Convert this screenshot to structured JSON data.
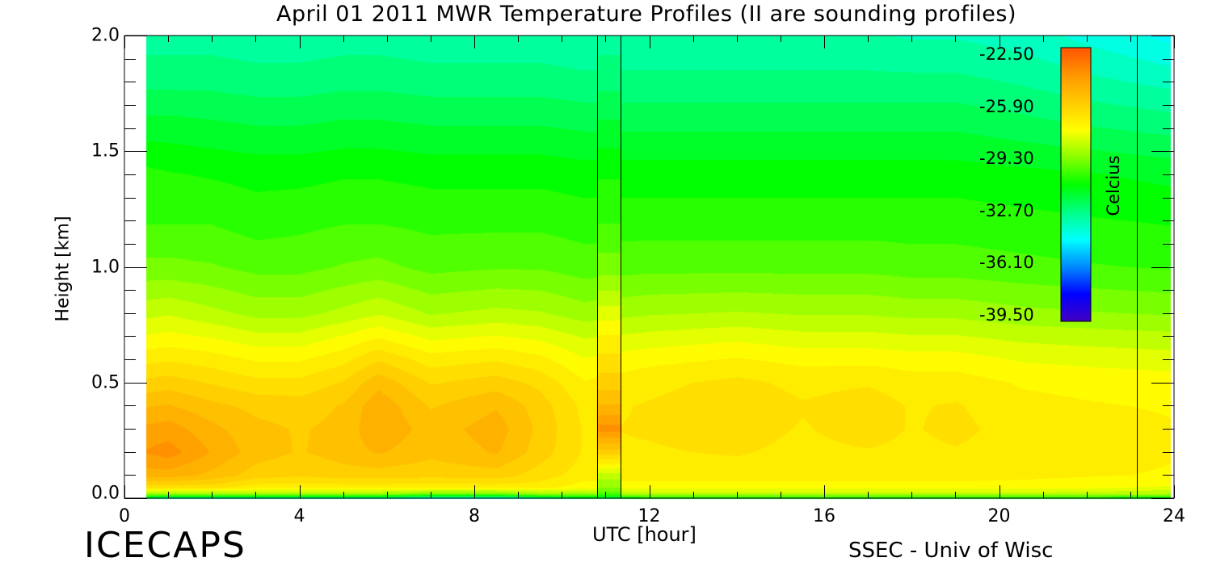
{
  "chart_data": {
    "type": "heatmap",
    "title": "April 01 2011 MWR Temperature Profiles (II are sounding profiles)",
    "xlabel": "UTC [hour]",
    "ylabel": "Height [km]",
    "xlim": [
      0,
      24
    ],
    "ylim": [
      0,
      2
    ],
    "x_ticks": [
      "0",
      "4",
      "8",
      "12",
      "16",
      "20",
      "24"
    ],
    "y_ticks": [
      "0.0",
      "0.5",
      "1.0",
      "1.5",
      "2.0"
    ],
    "data_x_range": [
      0.5,
      23.9
    ],
    "sounding_profiles": [
      {
        "times": [
          10.8,
          11.35
        ],
        "peak_temperature": -24.0,
        "peak_height": 0.3
      }
    ],
    "sounding_lines_x": [
      10.8,
      11.35,
      23.15
    ],
    "colorbar": {
      "label": "Celcius",
      "ticks": [
        "-22.50",
        "-25.90",
        "-29.30",
        "-32.70",
        "-36.10",
        "-39.50"
      ],
      "range": [
        -39.5,
        -22.5
      ],
      "colors": [
        "#4400c0",
        "#0000ff",
        "#0088ff",
        "#00ffff",
        "#00ff88",
        "#00ff00",
        "#88ff00",
        "#ffff00",
        "#ffcc00",
        "#ff9900",
        "#ff5500"
      ]
    },
    "profile_heights": [
      0.0,
      0.02,
      0.05,
      0.1,
      0.2,
      0.3,
      0.4,
      0.5,
      0.6,
      0.7,
      0.8,
      1.0,
      1.2,
      1.4,
      1.6,
      1.8,
      2.0
    ],
    "profile_times": [
      0.5,
      1.0,
      2.0,
      3.0,
      4.0,
      5.0,
      5.8,
      7.0,
      8.5,
      9.5,
      10.5,
      12.0,
      14.0,
      15.5,
      17.0,
      18.0,
      19.0,
      20.5,
      22.0,
      23.9
    ],
    "profiles": [
      [
        -32.5,
        -29.0,
        -26.5,
        -25.0,
        -24.2,
        -24.6,
        -25.3,
        -26.1,
        -26.9,
        -27.7,
        -28.4,
        -29.6,
        -30.3,
        -30.6,
        -31.5,
        -32.4,
        -33.0
      ],
      [
        -33.0,
        -29.0,
        -26.5,
        -25.0,
        -24.0,
        -24.5,
        -25.2,
        -26.0,
        -26.8,
        -27.6,
        -28.3,
        -29.6,
        -30.3,
        -30.7,
        -31.5,
        -32.4,
        -33.0
      ],
      [
        -33.0,
        -29.0,
        -26.5,
        -25.4,
        -24.8,
        -25.1,
        -25.6,
        -26.3,
        -27.0,
        -27.8,
        -28.6,
        -29.7,
        -30.3,
        -30.8,
        -31.6,
        -32.4,
        -33.0
      ],
      [
        -33.0,
        -29.0,
        -27.0,
        -26.0,
        -25.5,
        -25.6,
        -25.9,
        -26.6,
        -27.3,
        -28.1,
        -28.9,
        -29.9,
        -30.5,
        -30.9,
        -31.7,
        -32.5,
        -33.1
      ],
      [
        -33.0,
        -29.0,
        -27.0,
        -26.2,
        -25.8,
        -25.8,
        -26.0,
        -26.6,
        -27.3,
        -28.1,
        -28.9,
        -29.9,
        -30.4,
        -30.9,
        -31.7,
        -32.5,
        -33.1
      ],
      [
        -33.0,
        -29.0,
        -27.0,
        -26.0,
        -25.5,
        -25.6,
        -25.7,
        -26.2,
        -26.9,
        -27.7,
        -28.6,
        -29.7,
        -30.3,
        -30.8,
        -31.6,
        -32.4,
        -33.0
      ],
      [
        -33.0,
        -29.0,
        -27.0,
        -26.0,
        -25.2,
        -24.8,
        -24.9,
        -25.4,
        -26.3,
        -27.3,
        -28.3,
        -29.6,
        -30.3,
        -30.8,
        -31.6,
        -32.4,
        -33.0
      ],
      [
        -34.0,
        -29.5,
        -27.0,
        -26.1,
        -25.6,
        -25.5,
        -25.8,
        -26.3,
        -27.0,
        -27.9,
        -28.8,
        -29.9,
        -30.4,
        -30.9,
        -31.7,
        -32.5,
        -33.1
      ],
      [
        -34.0,
        -29.5,
        -27.0,
        -26.0,
        -25.2,
        -25.0,
        -25.3,
        -26.0,
        -26.8,
        -27.7,
        -28.6,
        -29.8,
        -30.4,
        -30.9,
        -31.7,
        -32.5,
        -33.1
      ],
      [
        -33.0,
        -29.0,
        -27.0,
        -26.5,
        -26.0,
        -25.9,
        -26.0,
        -26.4,
        -27.1,
        -27.9,
        -28.7,
        -29.8,
        -30.4,
        -30.9,
        -31.7,
        -32.5,
        -33.1
      ],
      [
        -32.0,
        -29.0,
        -27.5,
        -27.0,
        -26.8,
        -26.8,
        -26.9,
        -27.2,
        -27.7,
        -28.3,
        -29.0,
        -30.0,
        -30.5,
        -31.0,
        -31.8,
        -32.6,
        -33.2
      ],
      [
        -31.0,
        -28.5,
        -27.5,
        -27.0,
        -26.8,
        -26.7,
        -26.7,
        -26.9,
        -27.4,
        -28.1,
        -28.8,
        -29.9,
        -30.5,
        -31.0,
        -31.8,
        -32.6,
        -33.2
      ],
      [
        -31.0,
        -28.5,
        -27.5,
        -27.0,
        -26.7,
        -26.5,
        -26.4,
        -26.6,
        -27.2,
        -27.9,
        -28.7,
        -29.9,
        -30.5,
        -31.0,
        -31.8,
        -32.6,
        -33.2
      ],
      [
        -31.0,
        -28.5,
        -27.5,
        -27.0,
        -26.9,
        -26.8,
        -26.7,
        -26.9,
        -27.4,
        -28.1,
        -28.8,
        -29.9,
        -30.5,
        -31.0,
        -31.8,
        -32.6,
        -33.2
      ],
      [
        -31.0,
        -28.5,
        -27.5,
        -27.0,
        -26.8,
        -26.5,
        -26.5,
        -26.8,
        -27.4,
        -28.1,
        -28.8,
        -29.9,
        -30.5,
        -31.0,
        -31.8,
        -32.6,
        -33.2
      ],
      [
        -31.0,
        -28.5,
        -27.5,
        -27.0,
        -26.9,
        -26.8,
        -26.8,
        -27.0,
        -27.5,
        -28.2,
        -28.9,
        -30.0,
        -30.5,
        -31.0,
        -31.8,
        -32.6,
        -33.3
      ],
      [
        -31.0,
        -28.5,
        -27.5,
        -27.0,
        -26.8,
        -26.6,
        -26.7,
        -27.0,
        -27.5,
        -28.2,
        -28.9,
        -30.0,
        -30.5,
        -31.0,
        -31.8,
        -32.6,
        -33.3
      ],
      [
        -31.0,
        -28.5,
        -27.5,
        -27.1,
        -27.0,
        -27.0,
        -27.1,
        -27.3,
        -27.8,
        -28.4,
        -29.1,
        -30.1,
        -30.6,
        -31.1,
        -32.0,
        -32.8,
        -33.5
      ],
      [
        -31.0,
        -28.5,
        -27.6,
        -27.2,
        -27.0,
        -27.0,
        -27.2,
        -27.4,
        -27.9,
        -28.5,
        -29.2,
        -30.2,
        -30.7,
        -31.2,
        -32.2,
        -33.1,
        -33.9
      ],
      [
        -31.5,
        -28.8,
        -27.8,
        -27.3,
        -27.2,
        -27.2,
        -27.3,
        -27.5,
        -28.0,
        -28.6,
        -29.3,
        -30.3,
        -30.8,
        -31.4,
        -32.4,
        -33.4,
        -34.4
      ]
    ],
    "sounding_profile": [
      -32.0,
      -30.0,
      -29.2,
      -28.5,
      -26.0,
      -24.0,
      -25.2,
      -26.0,
      -26.6,
      -27.2,
      -28.0,
      -29.5,
      -30.3,
      -30.8,
      -31.6,
      -32.4,
      -33.0
    ]
  },
  "footer": {
    "logo": "ICECAPS",
    "credit": "SSEC - Univ of Wisc"
  }
}
